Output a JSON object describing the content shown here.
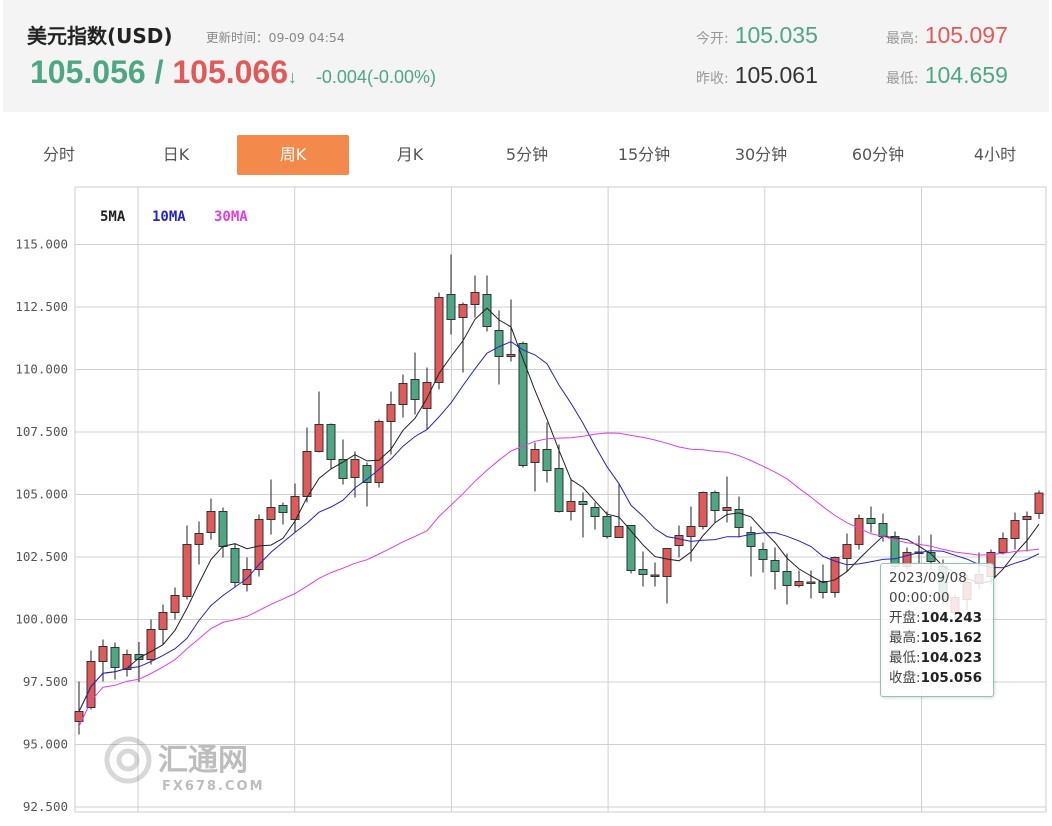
{
  "header": {
    "title": "美元指数(USD)",
    "update_label": "更新时间：",
    "update_time": "09-09 04:54",
    "bid": "105.056",
    "separator": "/",
    "ask": "105.066",
    "arrow": "↓",
    "change": "-0.004(-0.00%)",
    "stats": [
      {
        "label": "今开:",
        "value": "105.035",
        "color": "#4ea783"
      },
      {
        "label": "最高:",
        "value": "105.097",
        "color": "#e05a5a"
      },
      {
        "label": "昨收:",
        "value": "105.061",
        "color": "#333333"
      },
      {
        "label": "最低:",
        "value": "104.659",
        "color": "#4ea783"
      }
    ]
  },
  "tabs": [
    {
      "label": "分时"
    },
    {
      "label": "日K"
    },
    {
      "label": "周K",
      "active": true
    },
    {
      "label": "月K"
    },
    {
      "label": "5分钟"
    },
    {
      "label": "15分钟"
    },
    {
      "label": "30分钟"
    },
    {
      "label": "60分钟"
    },
    {
      "label": "4小时"
    }
  ],
  "watermark": {
    "text": "汇通网",
    "sub": "FX678.COM"
  },
  "tooltip": {
    "date": "2023/09/08",
    "time": "00:00:00",
    "open_label": "开盘:",
    "open": "104.243",
    "high_label": "最高:",
    "high": "105.162",
    "low_label": "最低:",
    "low": "104.023",
    "close_label": "收盘:",
    "close": "105.056"
  },
  "chart_data": {
    "type": "candlestick",
    "up_color": "#e05a5a",
    "down_color": "#4ea783",
    "ylim": [
      92.3,
      117.3
    ],
    "yticks": [
      "92.500",
      "95.000",
      "97.500",
      "100.000",
      "102.500",
      "105.000",
      "107.500",
      "110.000",
      "112.500",
      "115.000"
    ],
    "grid": true,
    "legend": [
      {
        "name": "5MA",
        "color": "#222222",
        "period": 5
      },
      {
        "name": "10MA",
        "color": "#2424c8",
        "period": 10
      },
      {
        "name": "30MA",
        "color": "#e040e0",
        "period": 30
      }
    ],
    "ohlc": [
      [
        95.92,
        97.52,
        95.4,
        96.32
      ],
      [
        96.48,
        98.76,
        96.4,
        98.32
      ],
      [
        98.32,
        99.2,
        97.52,
        98.92
      ],
      [
        98.88,
        99.08,
        97.6,
        98.08
      ],
      [
        98.0,
        98.8,
        97.72,
        98.6
      ],
      [
        98.6,
        99.1,
        97.5,
        98.4
      ],
      [
        98.4,
        100.0,
        98.2,
        99.6
      ],
      [
        99.6,
        100.6,
        99.0,
        100.28
      ],
      [
        100.28,
        101.28,
        100.0,
        100.96
      ],
      [
        100.92,
        103.76,
        100.8,
        103.0
      ],
      [
        103.0,
        103.92,
        102.2,
        103.44
      ],
      [
        103.48,
        104.84,
        103.2,
        104.32
      ],
      [
        104.32,
        104.48,
        102.48,
        102.92
      ],
      [
        102.84,
        103.04,
        101.28,
        101.48
      ],
      [
        101.4,
        102.48,
        101.12,
        102.0
      ],
      [
        102.0,
        104.2,
        101.72,
        104.0
      ],
      [
        104.0,
        105.6,
        103.4,
        104.48
      ],
      [
        104.56,
        104.68,
        103.8,
        104.28
      ],
      [
        104.0,
        105.44,
        103.48,
        104.92
      ],
      [
        104.92,
        107.68,
        104.68,
        106.72
      ],
      [
        106.72,
        109.12,
        106.68,
        107.8
      ],
      [
        107.8,
        107.84,
        106.0,
        106.4
      ],
      [
        106.4,
        107.2,
        105.4,
        105.64
      ],
      [
        105.68,
        106.72,
        104.88,
        106.4
      ],
      [
        106.16,
        106.28,
        104.52,
        105.48
      ],
      [
        105.48,
        108.0,
        105.28,
        107.92
      ],
      [
        107.92,
        109.12,
        106.6,
        108.6
      ],
      [
        108.6,
        109.8,
        108.08,
        109.44
      ],
      [
        109.6,
        110.68,
        108.2,
        108.8
      ],
      [
        108.44,
        110.08,
        107.6,
        109.48
      ],
      [
        109.48,
        113.08,
        109.2,
        112.88
      ],
      [
        113.0,
        114.6,
        111.4,
        112.0
      ],
      [
        112.08,
        112.68,
        109.88,
        112.6
      ],
      [
        112.6,
        113.76,
        112.08,
        113.08
      ],
      [
        113.0,
        113.76,
        111.52,
        111.72
      ],
      [
        111.56,
        112.36,
        109.4,
        110.52
      ],
      [
        110.52,
        112.8,
        110.32,
        110.6
      ],
      [
        111.04,
        111.12,
        106.08,
        106.16
      ],
      [
        106.28,
        107.08,
        105.12,
        106.8
      ],
      [
        106.8,
        107.88,
        105.48,
        105.96
      ],
      [
        106.04,
        107.0,
        104.28,
        104.32
      ],
      [
        104.32,
        105.64,
        103.96,
        104.72
      ],
      [
        104.72,
        105.08,
        103.28,
        104.6
      ],
      [
        104.48,
        104.68,
        103.6,
        104.12
      ],
      [
        104.12,
        104.32,
        103.24,
        103.32
      ],
      [
        103.28,
        105.44,
        103.28,
        103.72
      ],
      [
        103.76,
        103.76,
        101.84,
        101.96
      ],
      [
        102.0,
        102.72,
        101.32,
        101.8
      ],
      [
        101.74,
        102.28,
        101.32,
        101.78
      ],
      [
        101.72,
        102.84,
        100.64,
        102.84
      ],
      [
        102.96,
        103.76,
        102.48,
        103.36
      ],
      [
        103.32,
        104.52,
        102.32,
        103.72
      ],
      [
        103.72,
        105.12,
        103.6,
        105.08
      ],
      [
        105.08,
        105.16,
        103.88,
        104.36
      ],
      [
        104.36,
        105.72,
        103.88,
        104.48
      ],
      [
        104.4,
        104.92,
        103.28,
        103.68
      ],
      [
        103.48,
        103.72,
        101.72,
        102.92
      ],
      [
        102.8,
        103.08,
        101.88,
        102.4
      ],
      [
        102.36,
        102.88,
        101.2,
        101.92
      ],
      [
        101.92,
        102.64,
        100.6,
        101.36
      ],
      [
        101.36,
        101.96,
        101.28,
        101.52
      ],
      [
        101.48,
        101.96,
        100.84,
        101.5
      ],
      [
        101.52,
        102.2,
        100.84,
        101.08
      ],
      [
        101.08,
        102.52,
        100.88,
        102.48
      ],
      [
        102.44,
        103.44,
        101.92,
        103.0
      ],
      [
        103.0,
        104.2,
        102.8,
        104.04
      ],
      [
        104.04,
        104.52,
        103.48,
        103.84
      ],
      [
        103.84,
        104.24,
        103.12,
        103.32
      ],
      [
        103.32,
        103.52,
        102.0,
        102.12
      ],
      [
        102.12,
        102.88,
        102.0,
        102.68
      ],
      [
        102.66,
        103.36,
        102.2,
        102.7
      ],
      [
        102.68,
        103.4,
        102.0,
        102.32
      ],
      [
        102.12,
        102.4,
        100.6,
        100.8
      ],
      [
        100.28,
        101.0,
        100.0,
        100.88
      ],
      [
        100.8,
        101.8,
        100.4,
        101.48
      ],
      [
        101.44,
        102.68,
        101.2,
        101.8
      ],
      [
        101.72,
        102.8,
        101.4,
        102.68
      ],
      [
        102.68,
        103.48,
        102.6,
        103.24
      ],
      [
        103.24,
        104.28,
        102.8,
        103.96
      ],
      [
        104.0,
        104.32,
        102.72,
        104.12
      ],
      [
        104.243,
        105.162,
        104.023,
        105.056
      ]
    ]
  }
}
